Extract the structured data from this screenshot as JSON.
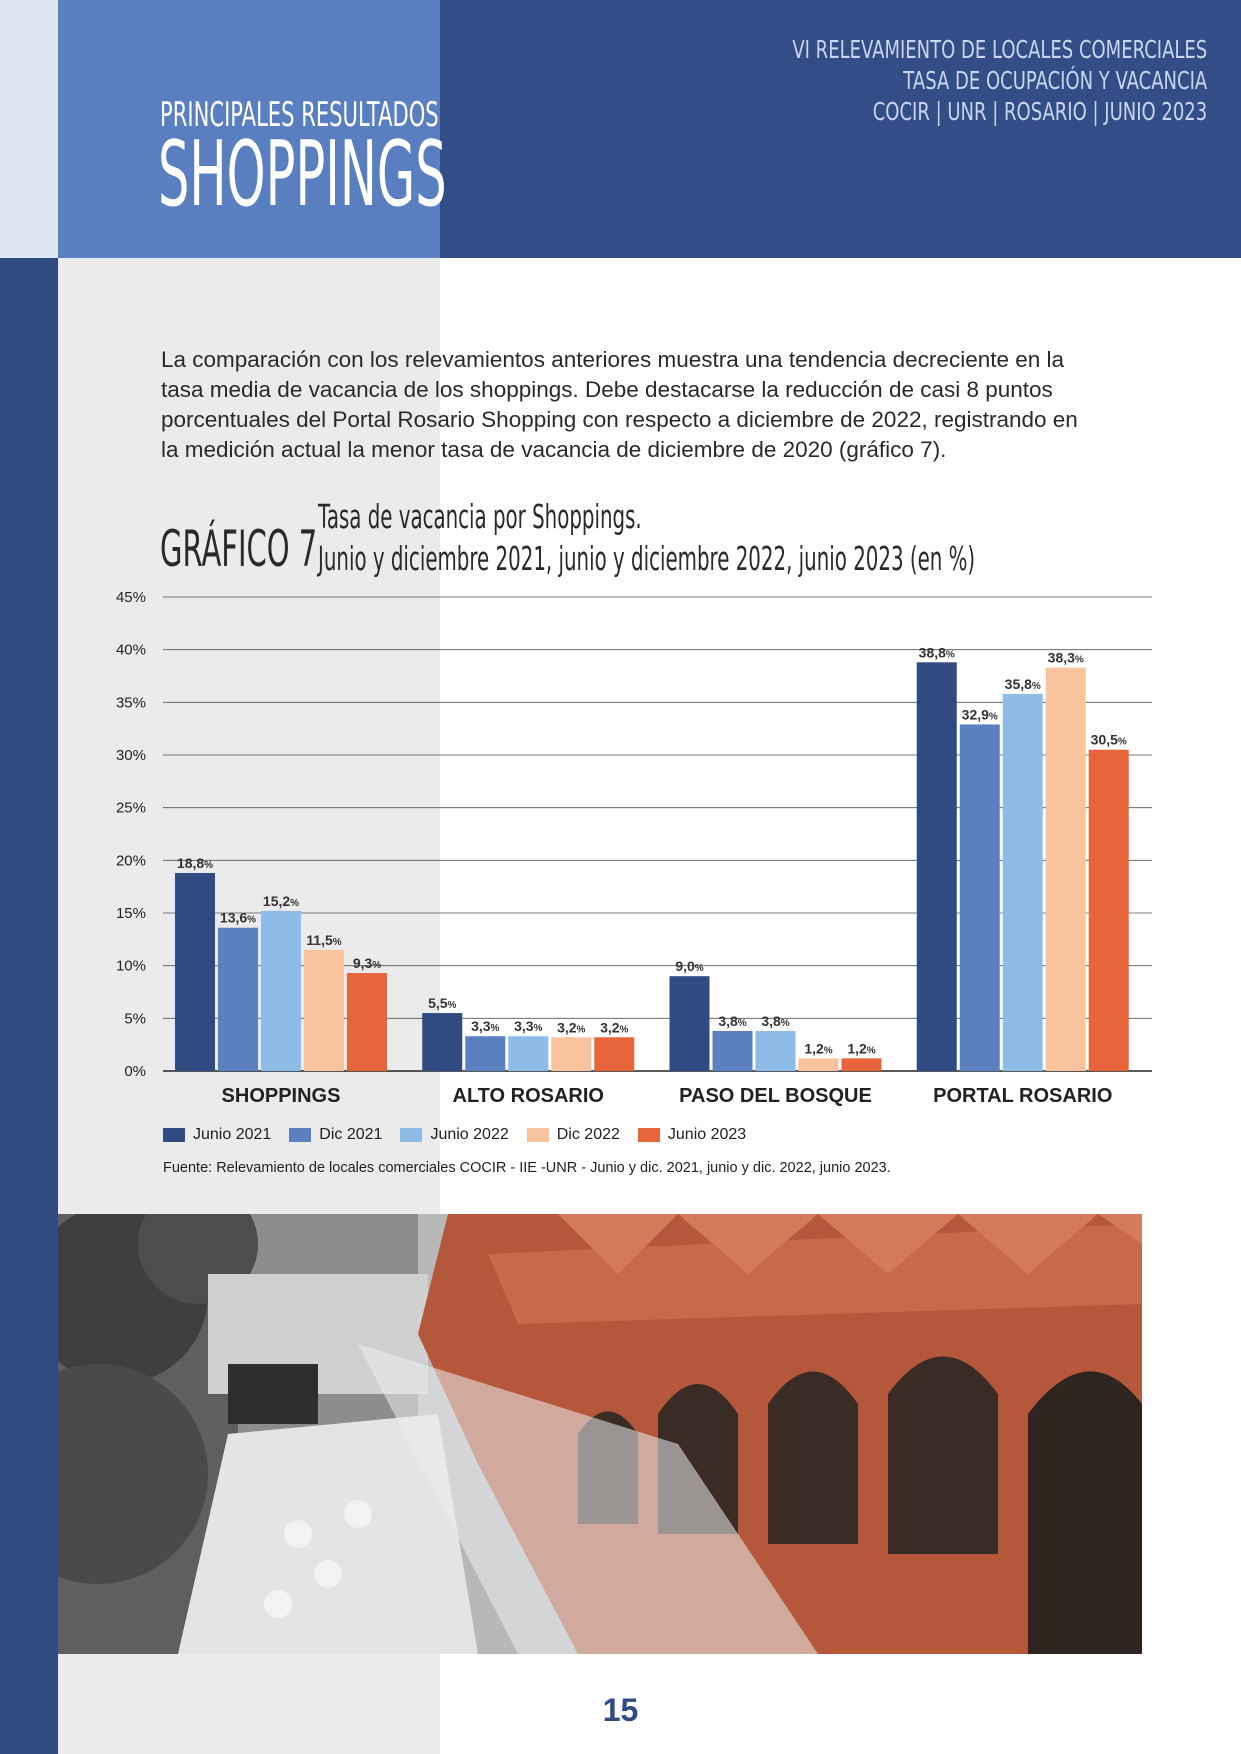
{
  "header": {
    "subtitle": "PRINCIPALES RESULTADOS",
    "title": "SHOPPINGS",
    "report_lines": [
      "VI RELEVAMIENTO DE LOCALES COMERCIALES",
      "TASA DE OCUPACIÓN Y VACANCIA",
      "COCIR | UNR | ROSARIO | JUNIO 2023"
    ]
  },
  "intro": "La comparación con los relevamientos anteriores muestra una tendencia decreciente en la tasa media de vacancia de los shoppings. Debe destacarse la reducción de casi 8 puntos porcentuales del Portal Rosario Shopping con respecto a diciembre de 2022, registrando en la medición actual la menor tasa de vacancia de diciembre de 2020 (gráfico 7).",
  "chart_label": "GRÁFICO 7",
  "chart_title_lines": [
    "Tasa de vacancia por Shoppings.",
    "Junio y diciembre 2021, junio y diciembre 2022, junio 2023 (en %)"
  ],
  "chart_data": {
    "type": "bar",
    "title": "Tasa de vacancia por Shoppings. Junio y diciembre 2021, junio y diciembre 2022, junio 2023 (en %)",
    "categories": [
      "SHOPPINGS",
      "ALTO ROSARIO",
      "PASO DEL BOSQUE",
      "PORTAL ROSARIO"
    ],
    "series": [
      {
        "name": "Junio 2021",
        "color": "#2f4b82",
        "values": [
          18.8,
          5.5,
          9.0,
          38.8
        ],
        "labels": [
          "18,8",
          "5,5",
          "9,0",
          "38,8"
        ]
      },
      {
        "name": "Dic 2021",
        "color": "#5b80c0",
        "values": [
          13.6,
          3.3,
          3.8,
          32.9
        ],
        "labels": [
          "13,6",
          "3,3",
          "3,8",
          "32,9"
        ]
      },
      {
        "name": "Junio 2022",
        "color": "#8dbce8",
        "values": [
          15.2,
          3.3,
          3.8,
          35.8
        ],
        "labels": [
          "15,2",
          "3,3",
          "3,8",
          "35,8"
        ]
      },
      {
        "name": "Dic 2022",
        "color": "#f9c49d",
        "values": [
          11.5,
          3.2,
          1.2,
          38.3
        ],
        "labels": [
          "11,5",
          "3,2",
          "1,2",
          "38,3"
        ]
      },
      {
        "name": "Junio 2023",
        "color": "#e8643a",
        "values": [
          9.3,
          3.2,
          1.2,
          30.5
        ],
        "labels": [
          "9,3",
          "3,2",
          "1,2",
          "30,5"
        ]
      }
    ],
    "unit_suffix": "%",
    "ylim": [
      0,
      45
    ],
    "yticks": [
      "0%",
      "5%",
      "10%",
      "15%",
      "20%",
      "25%",
      "30%",
      "35%",
      "40%",
      "45%"
    ],
    "grid": true,
    "legend": "bottom-left"
  },
  "source": "Fuente: Relevamiento de locales comerciales COCIR - IIE -UNR - Junio y dic. 2021, junio y dic. 2022, junio 2023.",
  "page_number": "15"
}
